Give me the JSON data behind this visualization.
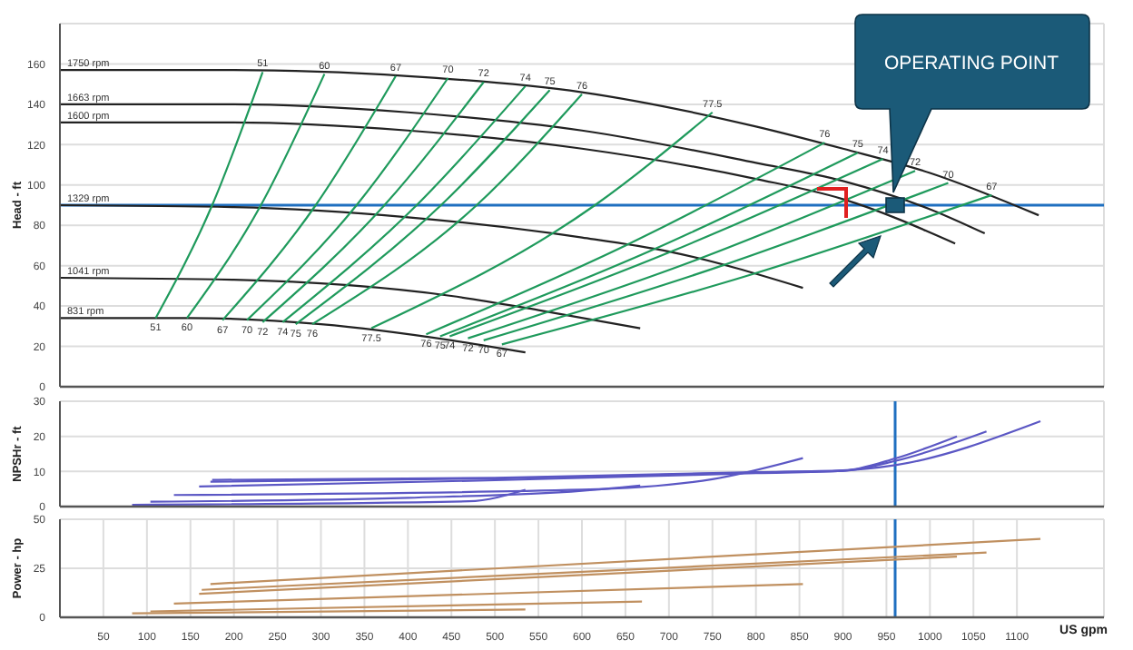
{
  "chart_data": [
    {
      "type": "line",
      "ylabel": "Head - ft",
      "xlim": [
        0,
        1200
      ],
      "xticks": [
        50,
        100,
        150,
        200,
        250,
        300,
        350,
        400,
        450,
        500,
        550,
        600,
        650,
        700,
        750,
        800,
        850,
        900,
        950,
        1000,
        1050,
        1100
      ],
      "ylim": [
        0,
        180
      ],
      "yticks": [
        0,
        20,
        40,
        60,
        80,
        100,
        120,
        140,
        160
      ],
      "grid": true,
      "tick_labels": "y",
      "annotations": [
        "OPERATING POINT"
      ],
      "ref_lines": [
        {
          "axis": "y",
          "value": 90,
          "color": "#1f6fc0"
        }
      ],
      "series": [
        {
          "name": "1750 rpm",
          "color": "#222222",
          "x": [
            0,
            200,
            400,
            600,
            800,
            900,
            1000,
            1125
          ],
          "values": [
            157,
            157,
            154,
            146,
            129,
            118,
            106,
            85
          ]
        },
        {
          "name": "1663 rpm",
          "color": "#222222",
          "x": [
            0,
            200,
            400,
            600,
            800,
            900,
            1000,
            1063
          ],
          "values": [
            140,
            140,
            136,
            127,
            111,
            102,
            88,
            76
          ]
        },
        {
          "name": "1600 rpm",
          "color": "#222222",
          "x": [
            0,
            200,
            400,
            600,
            800,
            900,
            1029
          ],
          "values": [
            131,
            131,
            127,
            118,
            103,
            93,
            71
          ]
        },
        {
          "name": "1329 rpm",
          "color": "#222222",
          "x": [
            0,
            200,
            400,
            600,
            700,
            854
          ],
          "values": [
            90,
            89,
            84,
            74,
            67,
            49
          ]
        },
        {
          "name": "1041 rpm",
          "color": "#222222",
          "x": [
            0,
            200,
            450,
            550,
            667
          ],
          "values": [
            54,
            53,
            45,
            38,
            29
          ]
        },
        {
          "name": "831 rpm",
          "color": "#222222",
          "x": [
            0,
            150,
            300,
            450,
            535
          ],
          "values": [
            34,
            34,
            31,
            23,
            17
          ]
        },
        {
          "name": "51",
          "color": "#1f9a5c",
          "x": [
            110,
            175,
            233
          ],
          "values": [
            34,
            90,
            156
          ]
        },
        {
          "name": "60",
          "color": "#1f9a5c",
          "x": [
            146,
            231,
            304
          ],
          "values": [
            34,
            90,
            155
          ]
        },
        {
          "name": "67",
          "color": "#1f9a5c",
          "x": [
            187,
            294,
            386
          ],
          "values": [
            33,
            90,
            154
          ]
        },
        {
          "name": "70",
          "color": "#1f9a5c",
          "x": [
            215,
            341,
            446
          ],
          "values": [
            33,
            90,
            153
          ]
        },
        {
          "name": "72",
          "color": "#1f9a5c",
          "x": [
            233,
            373,
            487
          ],
          "values": [
            32,
            90,
            151
          ]
        },
        {
          "name": "74",
          "color": "#1f9a5c",
          "x": [
            256,
            410,
            535
          ],
          "values": [
            32,
            90,
            149
          ]
        },
        {
          "name": "75",
          "color": "#1f9a5c",
          "x": [
            271,
            438,
            563
          ],
          "values": [
            31,
            90,
            147
          ]
        },
        {
          "name": "76",
          "color": "#1f9a5c",
          "x": [
            290,
            479,
            600
          ],
          "values": [
            31,
            90,
            145
          ]
        },
        {
          "name": "77.5",
          "color": "#1f9a5c",
          "x": [
            358,
            615,
            750
          ],
          "values": [
            29,
            90,
            136
          ]
        },
        {
          "name": "76",
          "color": "#1f9a5c",
          "x": [
            421,
            650,
            879
          ],
          "values": [
            26,
            70,
            121
          ]
        },
        {
          "name": "75",
          "color": "#1f9a5c",
          "x": [
            437,
            677,
            917
          ],
          "values": [
            25,
            67,
            116
          ]
        },
        {
          "name": "74",
          "color": "#1f9a5c",
          "x": [
            448,
            697,
            946
          ],
          "values": [
            25,
            66,
            113
          ]
        },
        {
          "name": "72",
          "color": "#1f9a5c",
          "x": [
            469,
            726,
            983
          ],
          "values": [
            24,
            62,
            107
          ]
        },
        {
          "name": "70",
          "color": "#1f9a5c",
          "x": [
            487,
            754,
            1021
          ],
          "values": [
            23,
            59,
            101
          ]
        },
        {
          "name": "67",
          "color": "#1f9a5c",
          "x": [
            508,
            790,
            1071
          ],
          "values": [
            21,
            55,
            95
          ]
        },
        {
          "type": "scatter",
          "marker": "square",
          "color": "#1b5a78",
          "x": [
            960
          ],
          "values": [
            90
          ]
        }
      ]
    },
    {
      "type": "line",
      "ylabel": "NPSHr - ft",
      "xlim": [
        0,
        1200
      ],
      "xticks": [
        50,
        100,
        150,
        200,
        250,
        300,
        350,
        400,
        450,
        500,
        550,
        600,
        650,
        700,
        750,
        800,
        850,
        900,
        950,
        1000,
        1050,
        1100
      ],
      "ylim": [
        0,
        30
      ],
      "yticks": [
        0,
        10,
        20,
        30
      ],
      "grid": true,
      "tick_labels": "y",
      "ref_lines": [
        {
          "axis": "x",
          "value": 960,
          "color": "#1f6fc0"
        }
      ],
      "series": [
        {
          "color": "#5b57c4",
          "x": [
            175,
            500,
            800,
            900,
            960,
            1127
          ],
          "values": [
            7.6,
            8.2,
            9.8,
            10.3,
            11.8,
            24.3
          ]
        },
        {
          "color": "#5b57c4",
          "x": [
            173,
            500,
            800,
            900,
            960,
            1065
          ],
          "values": [
            7.1,
            8,
            9.7,
            10.2,
            13,
            21.4
          ]
        },
        {
          "color": "#5b57c4",
          "x": [
            160,
            500,
            800,
            900,
            960,
            1031
          ],
          "values": [
            5.7,
            7.5,
            9.5,
            10.2,
            13.7,
            20
          ]
        },
        {
          "color": "#5b57c4",
          "x": [
            131,
            600,
            750,
            854
          ],
          "values": [
            3.3,
            4.8,
            7.8,
            13.8
          ]
        },
        {
          "color": "#5b57c4",
          "x": [
            104,
            400,
            600,
            667
          ],
          "values": [
            1.4,
            2.5,
            4.5,
            6
          ]
        },
        {
          "color": "#5b57c4",
          "x": [
            83,
            470,
            535
          ],
          "values": [
            0.5,
            1.5,
            4.8
          ]
        }
      ]
    },
    {
      "type": "line",
      "ylabel": "Power - hp",
      "xlabel": "US gpm",
      "xlim": [
        0,
        1200
      ],
      "xticks": [
        50,
        100,
        150,
        200,
        250,
        300,
        350,
        400,
        450,
        500,
        550,
        600,
        650,
        700,
        750,
        800,
        850,
        900,
        950,
        1000,
        1050,
        1100
      ],
      "ylim": [
        0,
        50
      ],
      "yticks": [
        0,
        25,
        50
      ],
      "grid": true,
      "ref_lines": [
        {
          "axis": "x",
          "value": 960,
          "color": "#1f6fc0"
        }
      ],
      "series": [
        {
          "color": "#c09060",
          "x": [
            173,
            1127
          ],
          "values": [
            17,
            40
          ]
        },
        {
          "color": "#c09060",
          "x": [
            163,
            1065
          ],
          "values": [
            14,
            33
          ]
        },
        {
          "color": "#c09060",
          "x": [
            160,
            1031
          ],
          "values": [
            12,
            31
          ]
        },
        {
          "color": "#c09060",
          "x": [
            131,
            854
          ],
          "values": [
            7,
            17
          ]
        },
        {
          "color": "#c09060",
          "x": [
            104,
            669
          ],
          "values": [
            3,
            8
          ]
        },
        {
          "color": "#c09060",
          "x": [
            83,
            535
          ],
          "values": [
            2,
            4
          ]
        }
      ]
    }
  ]
}
